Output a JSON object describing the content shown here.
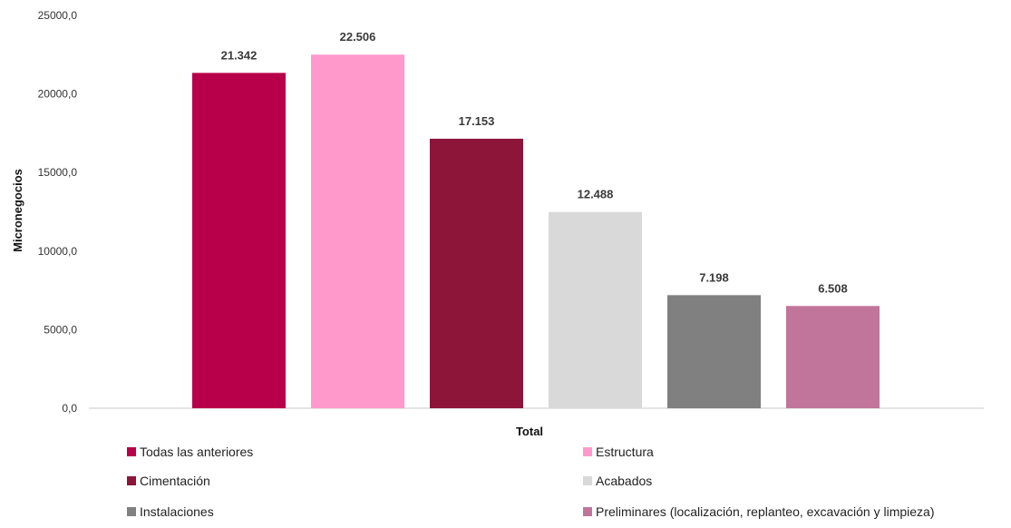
{
  "chart_data": {
    "type": "bar",
    "xlabel": "Total",
    "ylabel": "Micronegocios",
    "ylim": [
      0,
      25000
    ],
    "yticks": [
      0,
      5000,
      10000,
      15000,
      20000,
      25000
    ],
    "ytick_labels": [
      "0,0",
      "5000,0",
      "10000,0",
      "15000,0",
      "20000,0",
      "25000,0"
    ],
    "grid": false,
    "legend_position": "bottom",
    "categories": [
      "Total"
    ],
    "series": [
      {
        "name": "Todas las anteriores",
        "value": 21342,
        "label": "21.342",
        "color": "#B8004A"
      },
      {
        "name": "Estructura",
        "value": 22506,
        "label": "22.506",
        "color": "#FF99CC"
      },
      {
        "name": "Cimentación",
        "value": 17153,
        "label": "17.153",
        "color": "#8C1539"
      },
      {
        "name": "Acabados",
        "value": 12488,
        "label": "12.488",
        "color": "#D9D9D9"
      },
      {
        "name": "Instalaciones",
        "value": 7198,
        "label": "7.198",
        "color": "#808080"
      },
      {
        "name": "Preliminares (localización, replanteo, excavación y limpieza)",
        "value": 6508,
        "label": "6.508",
        "color": "#C1759B"
      }
    ]
  }
}
